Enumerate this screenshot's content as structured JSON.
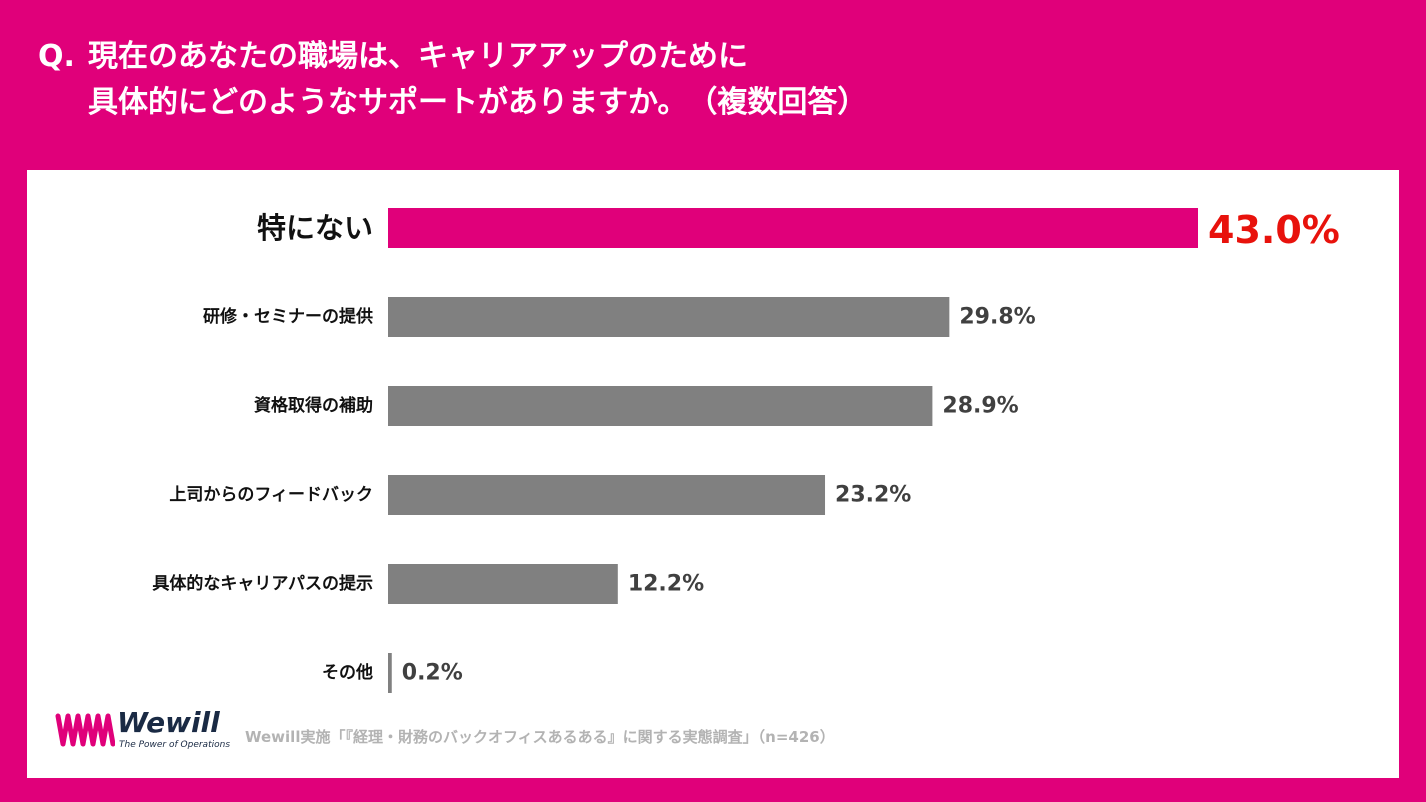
{
  "question": {
    "prefix": "Q.",
    "line1": "現在のあなたの職場は、キャリアアップのために",
    "line2": "具体的にどのようなサポートがありますか。　（複数回答）"
  },
  "chart_data": {
    "type": "bar",
    "orientation": "horizontal",
    "categories": [
      "特にない",
      "研修・セミナーの提供",
      "資格取得の補助",
      "上司からのフィードバック",
      "具体的なキャリアパスの提示",
      "その他"
    ],
    "values": [
      43.0,
      29.8,
      28.9,
      23.2,
      12.2,
      0.2
    ],
    "value_labels": [
      "43.0%",
      "29.8%",
      "28.9%",
      "23.2%",
      "12.2%",
      "0.2%"
    ],
    "unit": "%",
    "highlight_index": 0,
    "colors": {
      "highlight": "#E0007A",
      "default": "#808080",
      "highlight_label": "#E8120C",
      "label": "#404040"
    },
    "xlim": [
      0,
      43
    ]
  },
  "logo": {
    "name": "Wewill",
    "tagline": "The Power of Operations",
    "color": "#E0007A"
  },
  "source": "Wewill実施「『経理・財務のバックオフィスあるある』に関する実態調査」（n=426）"
}
